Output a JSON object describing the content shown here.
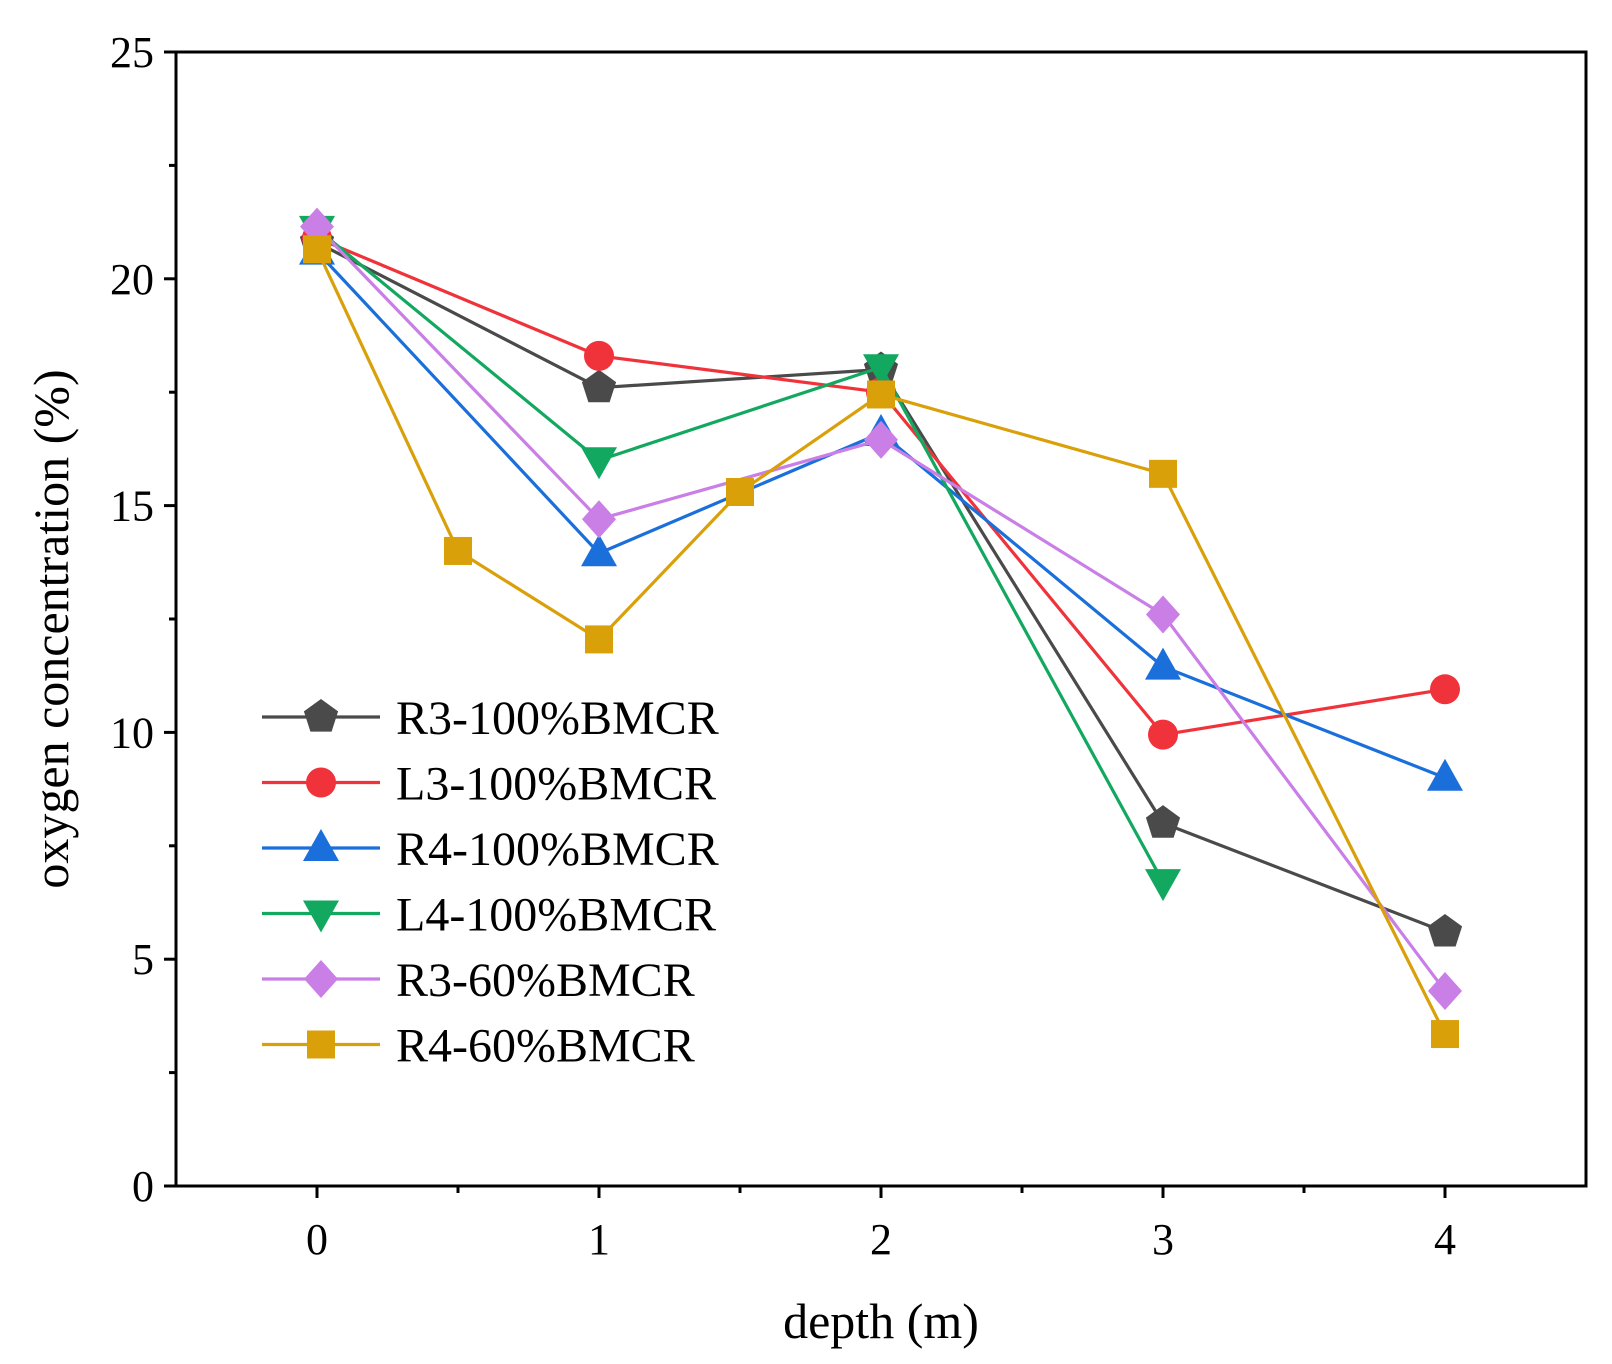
{
  "chart_data": {
    "type": "line",
    "xlabel": "depth (m)",
    "ylabel": "oxygen concentration (%)",
    "xlim": [
      -0.5,
      4.5
    ],
    "ylim": [
      0,
      25
    ],
    "x_ticks": [
      0,
      1,
      2,
      3,
      4
    ],
    "x_minor_ticks": [
      0.5,
      1.5,
      2.5,
      3.5
    ],
    "y_ticks": [
      0,
      5,
      10,
      15,
      20,
      25
    ],
    "y_minor_ticks": [
      2.5,
      7.5,
      12.5,
      17.5,
      22.5
    ],
    "grid": false,
    "legend_position": "left",
    "series": [
      {
        "name": "R3-100%BMCR",
        "color": "#4a4a4a",
        "marker": "pentagon",
        "x": [
          0,
          1,
          2,
          3,
          4
        ],
        "y": [
          20.8,
          17.6,
          18.0,
          8.0,
          5.6
        ]
      },
      {
        "name": "L3-100%BMCR",
        "color": "#f0333b",
        "marker": "circle",
        "x": [
          0,
          1,
          2,
          3,
          4
        ],
        "y": [
          20.9,
          18.3,
          17.5,
          9.95,
          10.95
        ]
      },
      {
        "name": "R4-100%BMCR",
        "color": "#1a6fdb",
        "marker": "triangle-up",
        "x": [
          0,
          1,
          2,
          3,
          4
        ],
        "y": [
          20.6,
          13.95,
          16.6,
          11.45,
          9.0
        ]
      },
      {
        "name": "L4-100%BMCR",
        "color": "#13a860",
        "marker": "triangle-down",
        "x": [
          0,
          1,
          2,
          3,
          4
        ],
        "y": [
          21.1,
          16.0,
          18.05,
          6.7,
          null
        ]
      },
      {
        "name": "R3-60%BMCR",
        "color": "#c97fe6",
        "marker": "diamond",
        "x": [
          0,
          1,
          2,
          3,
          4
        ],
        "y": [
          21.15,
          14.7,
          16.45,
          12.6,
          4.3
        ]
      },
      {
        "name": "R4-60%BMCR",
        "color": "#d9a00a",
        "marker": "square",
        "x": [
          0,
          0.5,
          1,
          1.5,
          2,
          3,
          4
        ],
        "y": [
          20.65,
          14.0,
          12.05,
          15.3,
          17.45,
          15.7,
          3.35
        ]
      }
    ]
  }
}
